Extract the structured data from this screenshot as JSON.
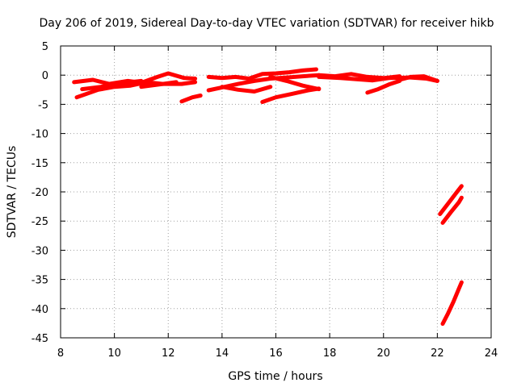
{
  "chart_data": {
    "type": "scatter",
    "title": "Day 206 of 2019, Sidereal Day-to-day VTEC variation (SDTVAR) for receiver hikb",
    "xlabel": "GPS time / hours",
    "ylabel": "SDTVAR / TECUs",
    "xlim": [
      8,
      24
    ],
    "ylim": [
      -45,
      5
    ],
    "xticks": [
      8,
      10,
      12,
      14,
      16,
      18,
      20,
      22,
      24
    ],
    "yticks": [
      5,
      0,
      -5,
      -10,
      -15,
      -20,
      -25,
      -30,
      -35,
      -40,
      -45
    ],
    "grid": true,
    "color": "#ff0000",
    "series": [
      {
        "x": [
          8.5,
          9.2,
          9.8,
          10.5,
          11.0,
          11.6,
          12.0,
          12.6,
          13.0
        ],
        "y": [
          -1.2,
          -0.8,
          -1.5,
          -1.0,
          -1.3,
          -0.3,
          0.3,
          -0.5,
          -0.6
        ]
      },
      {
        "x": [
          8.6,
          9.4,
          10.0,
          10.6,
          11.2,
          11.8,
          12.3
        ],
        "y": [
          -3.8,
          -2.5,
          -2.0,
          -1.8,
          -1.2,
          -1.5,
          -1.2
        ]
      },
      {
        "x": [
          8.8,
          9.5,
          10.2,
          11.0
        ],
        "y": [
          -2.4,
          -2.0,
          -1.4,
          -1.0
        ]
      },
      {
        "x": [
          11.0,
          11.8,
          12.5,
          13.0
        ],
        "y": [
          -2.0,
          -1.5,
          -1.5,
          -1.2
        ]
      },
      {
        "x": [
          12.5,
          12.9,
          13.2
        ],
        "y": [
          -4.5,
          -3.8,
          -3.5
        ]
      },
      {
        "x": [
          13.5,
          14.0,
          14.5,
          15.0,
          15.5,
          16.0,
          16.5,
          17.0,
          17.5
        ],
        "y": [
          -0.3,
          -0.5,
          -0.3,
          -0.6,
          0.2,
          0.3,
          0.5,
          0.8,
          1.0
        ]
      },
      {
        "x": [
          13.5,
          14.0,
          14.6,
          15.2,
          15.8,
          16.4,
          17.0,
          17.6
        ],
        "y": [
          -2.6,
          -2.1,
          -1.5,
          -1.0,
          -0.6,
          -0.4,
          -0.2,
          0.0
        ]
      },
      {
        "x": [
          14.0,
          14.6,
          15.2,
          15.8
        ],
        "y": [
          -2.0,
          -2.5,
          -2.8,
          -2.0
        ]
      },
      {
        "x": [
          15.5,
          16.0,
          16.6,
          17.2,
          17.6
        ],
        "y": [
          -4.6,
          -3.8,
          -3.2,
          -2.6,
          -2.3
        ]
      },
      {
        "x": [
          15.8,
          16.4,
          17.0,
          17.6
        ],
        "y": [
          -0.3,
          -1.0,
          -1.8,
          -2.4
        ]
      },
      {
        "x": [
          17.6,
          18.2,
          18.8,
          19.4,
          20.0,
          20.6
        ],
        "y": [
          0.0,
          -0.2,
          0.2,
          -0.3,
          -0.5,
          -0.2
        ]
      },
      {
        "x": [
          17.6,
          18.4,
          19.0,
          19.6,
          20.2,
          21.0,
          21.6,
          22.0
        ],
        "y": [
          -0.3,
          -0.5,
          -0.7,
          -0.9,
          -0.5,
          -0.4,
          -0.6,
          -1.0
        ]
      },
      {
        "x": [
          19.4,
          19.8,
          20.2,
          20.6
        ],
        "y": [
          -3.0,
          -2.4,
          -1.6,
          -1.0
        ]
      },
      {
        "x": [
          20.6,
          21.0,
          21.5,
          22.0
        ],
        "y": [
          -0.8,
          -0.3,
          -0.2,
          -1.0
        ]
      },
      {
        "x": [
          22.1,
          22.4,
          22.7,
          22.9
        ],
        "y": [
          -23.8,
          -22.0,
          -20.2,
          -19.0
        ]
      },
      {
        "x": [
          22.2,
          22.5,
          22.8,
          22.9
        ],
        "y": [
          -25.3,
          -23.5,
          -21.8,
          -21.0
        ]
      },
      {
        "x": [
          22.2,
          22.4,
          22.6,
          22.8,
          22.9
        ],
        "y": [
          -42.6,
          -40.8,
          -38.8,
          -36.6,
          -35.5
        ]
      }
    ]
  }
}
